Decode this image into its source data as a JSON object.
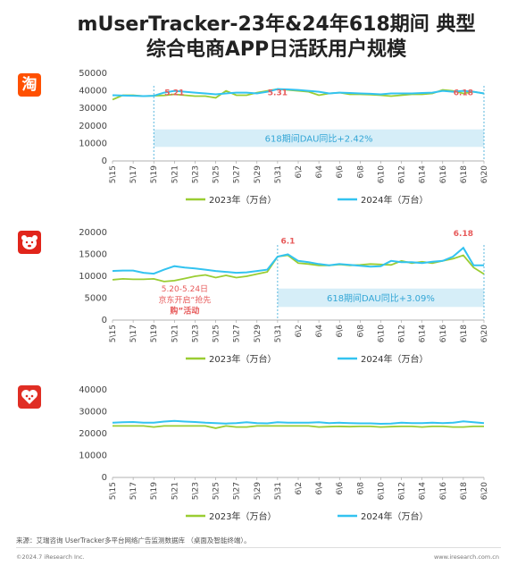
{
  "header": {
    "title_line1": "mUserTracker-23年&24年618期间 典型",
    "title_line2": "综合电商APP日活跃用户规模"
  },
  "icons": [
    {
      "name": "taobao-app-icon",
      "glyph": "淘",
      "color": "#ff5000"
    },
    {
      "name": "jd-app-icon",
      "glyph": "",
      "color": "#e1251b"
    },
    {
      "name": "pinduoduo-app-icon",
      "glyph": "",
      "color": "#e02e24"
    }
  ],
  "colors": {
    "series_2023": "#9acd32",
    "series_2024": "#33c3f0",
    "annotation": "#e75a5a",
    "band": "#d6eef8",
    "band_text": "#33a6d6"
  },
  "chart_data": [
    {
      "type": "line",
      "x": [
        "5\\15",
        "5\\16",
        "5\\17",
        "5\\18",
        "5\\19",
        "5\\20",
        "5\\21",
        "5\\22",
        "5\\23",
        "5\\24",
        "5\\25",
        "5\\26",
        "5\\27",
        "5\\28",
        "5\\29",
        "5\\30",
        "5\\31",
        "6\\1",
        "6\\2",
        "6\\3",
        "6\\4",
        "6\\5",
        "6\\6",
        "6\\7",
        "6\\8",
        "6\\9",
        "6\\10",
        "6\\11",
        "6\\12",
        "6\\13",
        "6\\14",
        "6\\15",
        "6\\16",
        "6\\17",
        "6\\18",
        "6\\19",
        "6\\20"
      ],
      "xticks": [
        "5\\15",
        "5\\17",
        "5\\19",
        "5\\21",
        "5\\23",
        "5\\25",
        "5\\27",
        "5\\29",
        "5\\31",
        "6\\2",
        "6\\4",
        "6\\6",
        "6\\8",
        "6\\10",
        "6\\12",
        "6\\14",
        "6\\16",
        "6\\18",
        "6\\20"
      ],
      "ylim": [
        0,
        50000
      ],
      "yticks": [
        "0",
        "10000",
        "20000",
        "30000",
        "40000",
        "50000"
      ],
      "series": [
        {
          "name": "2023年（万台）",
          "values": [
            35000,
            37500,
            37500,
            37000,
            37200,
            37400,
            38000,
            37500,
            37000,
            37000,
            36000,
            40000,
            37500,
            37500,
            39000,
            40000,
            41000,
            40500,
            40000,
            39500,
            37500,
            38500,
            39000,
            38000,
            38000,
            37800,
            37500,
            37000,
            37500,
            38000,
            38000,
            38500,
            40500,
            40000,
            38500,
            39500,
            38500
          ]
        },
        {
          "name": "2024年（万台）",
          "values": [
            37500,
            37300,
            37200,
            37000,
            37200,
            39000,
            40000,
            39500,
            39000,
            38500,
            38000,
            38500,
            39000,
            39000,
            38500,
            39500,
            41000,
            40800,
            40500,
            40000,
            39500,
            38500,
            39000,
            38800,
            38500,
            38300,
            38000,
            38500,
            38500,
            38500,
            38800,
            39000,
            40000,
            39500,
            40000,
            39500,
            38500
          ]
        }
      ],
      "annotations": [
        {
          "text": "5.21",
          "at": "5\\21",
          "y": 37500
        },
        {
          "text": "5.31",
          "at": "5\\31",
          "y": 37500
        },
        {
          "text": "6.18",
          "at": "6\\18",
          "y": 37500
        }
      ],
      "band": {
        "text": "618期间DAU同比+2.42%",
        "from": "5\\19",
        "to": "6\\20",
        "y0": 18000,
        "y1": 8000
      }
    },
    {
      "type": "line",
      "x": [
        "5\\15",
        "5\\16",
        "5\\17",
        "5\\18",
        "5\\19",
        "5\\20",
        "5\\21",
        "5\\22",
        "5\\23",
        "5\\24",
        "5\\25",
        "5\\26",
        "5\\27",
        "5\\28",
        "5\\29",
        "5\\30",
        "5\\31",
        "6\\1",
        "6\\2",
        "6\\3",
        "6\\4",
        "6\\5",
        "6\\6",
        "6\\7",
        "6\\8",
        "6\\9",
        "6\\10",
        "6\\11",
        "6\\12",
        "6\\13",
        "6\\14",
        "6\\15",
        "6\\16",
        "6\\17",
        "6\\18",
        "6\\19",
        "6\\20"
      ],
      "xticks": [
        "5\\15",
        "5\\17",
        "5\\19",
        "5\\21",
        "5\\23",
        "5\\25",
        "5\\27",
        "5\\29",
        "5\\31",
        "6\\2",
        "6\\4",
        "6\\6",
        "6\\8",
        "6\\10",
        "6\\12",
        "6\\14",
        "6\\16",
        "6\\18",
        "6\\20"
      ],
      "ylim": [
        0,
        20000
      ],
      "yticks": [
        "0",
        "5000",
        "10000",
        "15000",
        "20000"
      ],
      "series": [
        {
          "name": "2023年（万台）",
          "values": [
            9200,
            9400,
            9300,
            9300,
            9400,
            8800,
            9000,
            9500,
            10000,
            10300,
            9700,
            10200,
            9700,
            10000,
            10500,
            11000,
            14500,
            14800,
            13000,
            12800,
            12500,
            12500,
            12700,
            12500,
            12600,
            12800,
            12700,
            12600,
            13500,
            13000,
            13300,
            13000,
            13500,
            14000,
            14800,
            12000,
            10500
          ]
        },
        {
          "name": "2024年（万台）",
          "values": [
            11200,
            11300,
            11300,
            10800,
            10600,
            11500,
            12300,
            12000,
            11800,
            11500,
            11200,
            11000,
            10800,
            10900,
            11200,
            11500,
            14500,
            15000,
            13500,
            13200,
            12800,
            12500,
            12800,
            12600,
            12400,
            12200,
            12300,
            13500,
            13200,
            13200,
            13000,
            13300,
            13500,
            14500,
            16500,
            12500,
            12500
          ]
        }
      ],
      "annotations": [
        {
          "text": "6.1",
          "at": "6\\1",
          "y": 17500
        },
        {
          "text": "6.18",
          "at": "6\\18",
          "y": 19200
        },
        {
          "text": "5.20-5.24日",
          "at": "5\\22",
          "y": 6500
        },
        {
          "text": "京东开启“抢先",
          "at": "5\\22",
          "y": 4000
        },
        {
          "text": "购”活动",
          "at": "5\\22",
          "y": 1500
        }
      ],
      "band": {
        "text": "618期间DAU同比+3.09%",
        "from": "5\\31",
        "to": "6\\20",
        "y0": 7200,
        "y1": 3000
      }
    },
    {
      "type": "line",
      "x": [
        "5\\15",
        "5\\16",
        "5\\17",
        "5\\18",
        "5\\19",
        "5\\20",
        "5\\21",
        "5\\22",
        "5\\23",
        "5\\24",
        "5\\25",
        "5\\26",
        "5\\27",
        "5\\28",
        "5\\29",
        "5\\30",
        "5\\31",
        "6\\1",
        "6\\2",
        "6\\3",
        "6\\4",
        "6\\5",
        "6\\6",
        "6\\7",
        "6\\8",
        "6\\9",
        "6\\10",
        "6\\11",
        "6\\12",
        "6\\13",
        "6\\14",
        "6\\15",
        "6\\16",
        "6\\17",
        "6\\18",
        "6\\19",
        "6\\20"
      ],
      "xticks": [
        "5\\15",
        "5\\17",
        "5\\19",
        "5\\21",
        "5\\23",
        "5\\25",
        "5\\27",
        "5\\29",
        "5\\31",
        "6\\2",
        "6\\4",
        "6\\6",
        "6\\8",
        "6\\10",
        "6\\12",
        "6\\14",
        "6\\16",
        "6\\18",
        "6\\20"
      ],
      "ylim": [
        0,
        40000
      ],
      "yticks": [
        "0",
        "10000",
        "20000",
        "30000",
        "40000"
      ],
      "series": [
        {
          "name": "2023年（万台）",
          "values": [
            23500,
            23500,
            23500,
            23500,
            23000,
            23500,
            23500,
            23500,
            23500,
            23500,
            22500,
            23500,
            23000,
            23000,
            23500,
            23500,
            23500,
            23500,
            23500,
            23500,
            23000,
            23200,
            23300,
            23200,
            23300,
            23300,
            23000,
            23200,
            23300,
            23300,
            23000,
            23300,
            23300,
            23000,
            23000,
            23300,
            23300
          ]
        },
        {
          "name": "2024年（万台）",
          "values": [
            25000,
            25200,
            25300,
            25000,
            25000,
            25500,
            25800,
            25500,
            25300,
            25000,
            24800,
            24600,
            24800,
            25200,
            24800,
            24700,
            25200,
            25000,
            25000,
            25000,
            25200,
            24800,
            25000,
            24800,
            24700,
            24700,
            24500,
            24600,
            25000,
            24800,
            24800,
            25000,
            24800,
            25000,
            25600,
            25200,
            24800
          ]
        }
      ]
    }
  ],
  "source": "来源：艾瑞咨询 UserTracker多平台网络广告监测数据库 （桌面及智能终端）。",
  "footer_left": "©2024.7 iResearch Inc.",
  "footer_right": "www.iresearch.com.cn"
}
